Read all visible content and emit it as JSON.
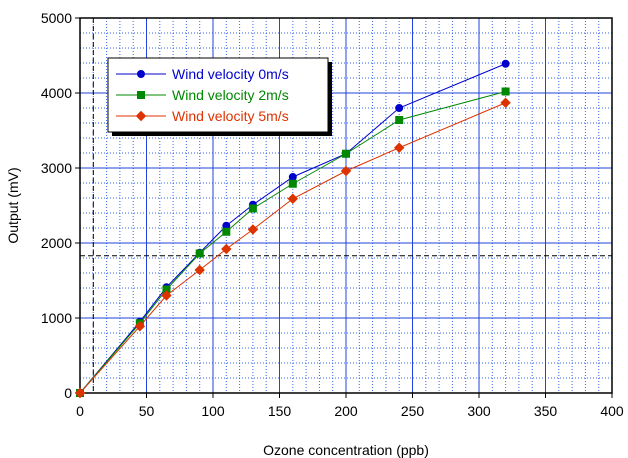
{
  "chart_data": {
    "type": "line",
    "title": "",
    "xlabel": "Ozone concentration (ppb)",
    "ylabel": "Output (mV)",
    "xlim": [
      0,
      400
    ],
    "ylim": [
      0,
      5000
    ],
    "x_ticks": [
      0,
      50,
      100,
      150,
      200,
      250,
      300,
      350,
      400
    ],
    "y_ticks": [
      0,
      1000,
      2000,
      3000,
      4000,
      5000
    ],
    "x_minor_step": 10,
    "y_minor_step": 200,
    "grid": true,
    "legend_position": "top-left",
    "reference_lines": {
      "horizontal_y": 1830,
      "vertical_x": 10
    },
    "series": [
      {
        "name": "Wind velocity 0m/s",
        "color": "#0000cc",
        "marker": "circle",
        "x": [
          0,
          45,
          65,
          90,
          110,
          130,
          160,
          200,
          240,
          320
        ],
        "y": [
          0,
          950,
          1410,
          1870,
          2230,
          2510,
          2880,
          3190,
          3800,
          4390
        ]
      },
      {
        "name": "Wind velocity 2m/s",
        "color": "#008800",
        "marker": "square",
        "x": [
          0,
          45,
          65,
          90,
          110,
          130,
          160,
          200,
          240,
          320
        ],
        "y": [
          0,
          930,
          1380,
          1860,
          2150,
          2460,
          2790,
          3190,
          3640,
          4020
        ]
      },
      {
        "name": "Wind velocity 5m/s",
        "color": "#dd3300",
        "marker": "diamond",
        "x": [
          0,
          45,
          65,
          90,
          110,
          130,
          160,
          200,
          240,
          320
        ],
        "y": [
          0,
          890,
          1300,
          1640,
          1920,
          2180,
          2590,
          2960,
          3270,
          3870
        ]
      }
    ]
  }
}
